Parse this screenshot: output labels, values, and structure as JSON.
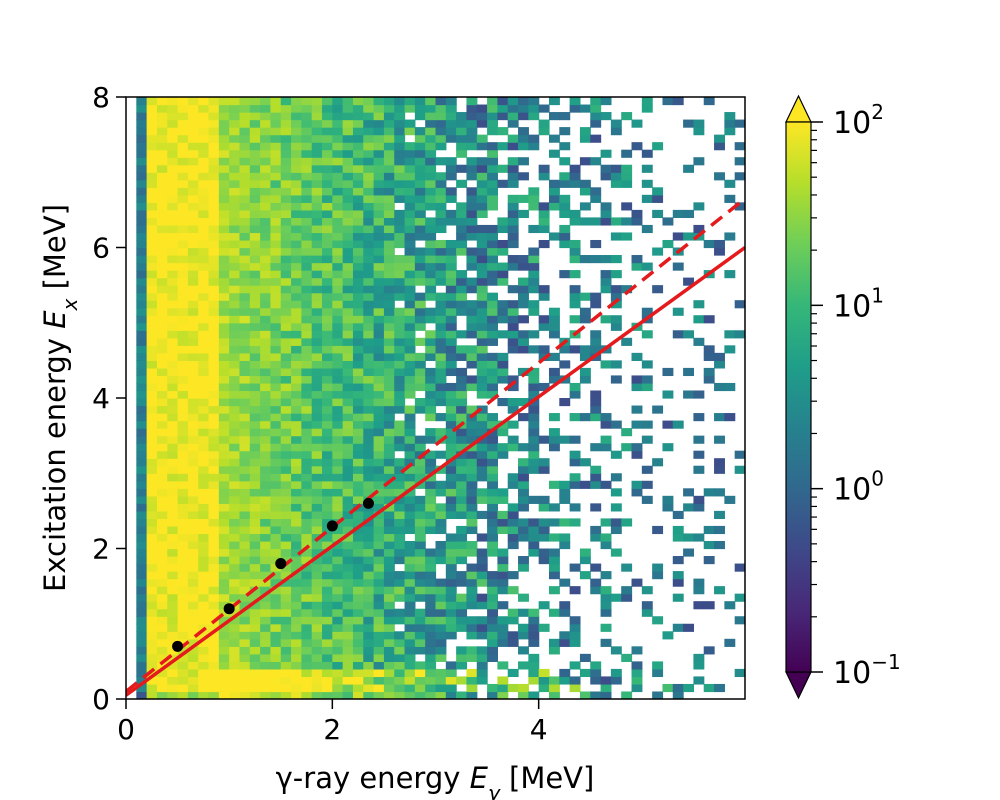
{
  "chart_data": {
    "type": "heatmap",
    "title": "",
    "xlabel": {
      "prefix": "γ-ray energy ",
      "var": "E",
      "sub": "γ",
      "suffix": " [MeV]"
    },
    "ylabel": {
      "prefix": "Excitation energy ",
      "var": "E",
      "sub": "x",
      "suffix": " [MeV]"
    },
    "xlim": [
      0,
      6.0
    ],
    "ylim": [
      0,
      8.0
    ],
    "x_ticks": [
      0,
      2,
      4
    ],
    "x_tick_labels": [
      "0",
      "2",
      "4"
    ],
    "y_ticks": [
      0,
      2,
      4,
      6,
      8
    ],
    "y_tick_labels": [
      "0",
      "2",
      "4",
      "6",
      "8"
    ],
    "grid": false,
    "colormap": "viridis",
    "color_scale": "log",
    "color_range": [
      0.1,
      100
    ],
    "colorbar": {
      "ticks": [
        0.1,
        1,
        10,
        100
      ],
      "tick_labels": [
        {
          "base": "10",
          "exp": "−1"
        },
        {
          "base": "10",
          "exp": "0"
        },
        {
          "base": "10",
          "exp": "1"
        },
        {
          "base": "10",
          "exp": "2"
        }
      ],
      "extend": "both"
    },
    "bins": {
      "x": 60,
      "y": 80
    },
    "series": [
      {
        "type": "line",
        "style": "solid",
        "color": "#e41a1c",
        "x": [
          0,
          6.0
        ],
        "y": [
          0.05,
          6.0
        ]
      },
      {
        "type": "line",
        "style": "dashed",
        "color": "#e41a1c",
        "x": [
          0,
          6.0
        ],
        "y": [
          0.1,
          6.65
        ]
      },
      {
        "type": "scatter",
        "color": "#000000",
        "x": [
          0.5,
          1.0,
          1.5,
          2.0,
          2.35
        ],
        "y": [
          0.7,
          1.2,
          1.8,
          2.3,
          2.6
        ]
      }
    ]
  }
}
